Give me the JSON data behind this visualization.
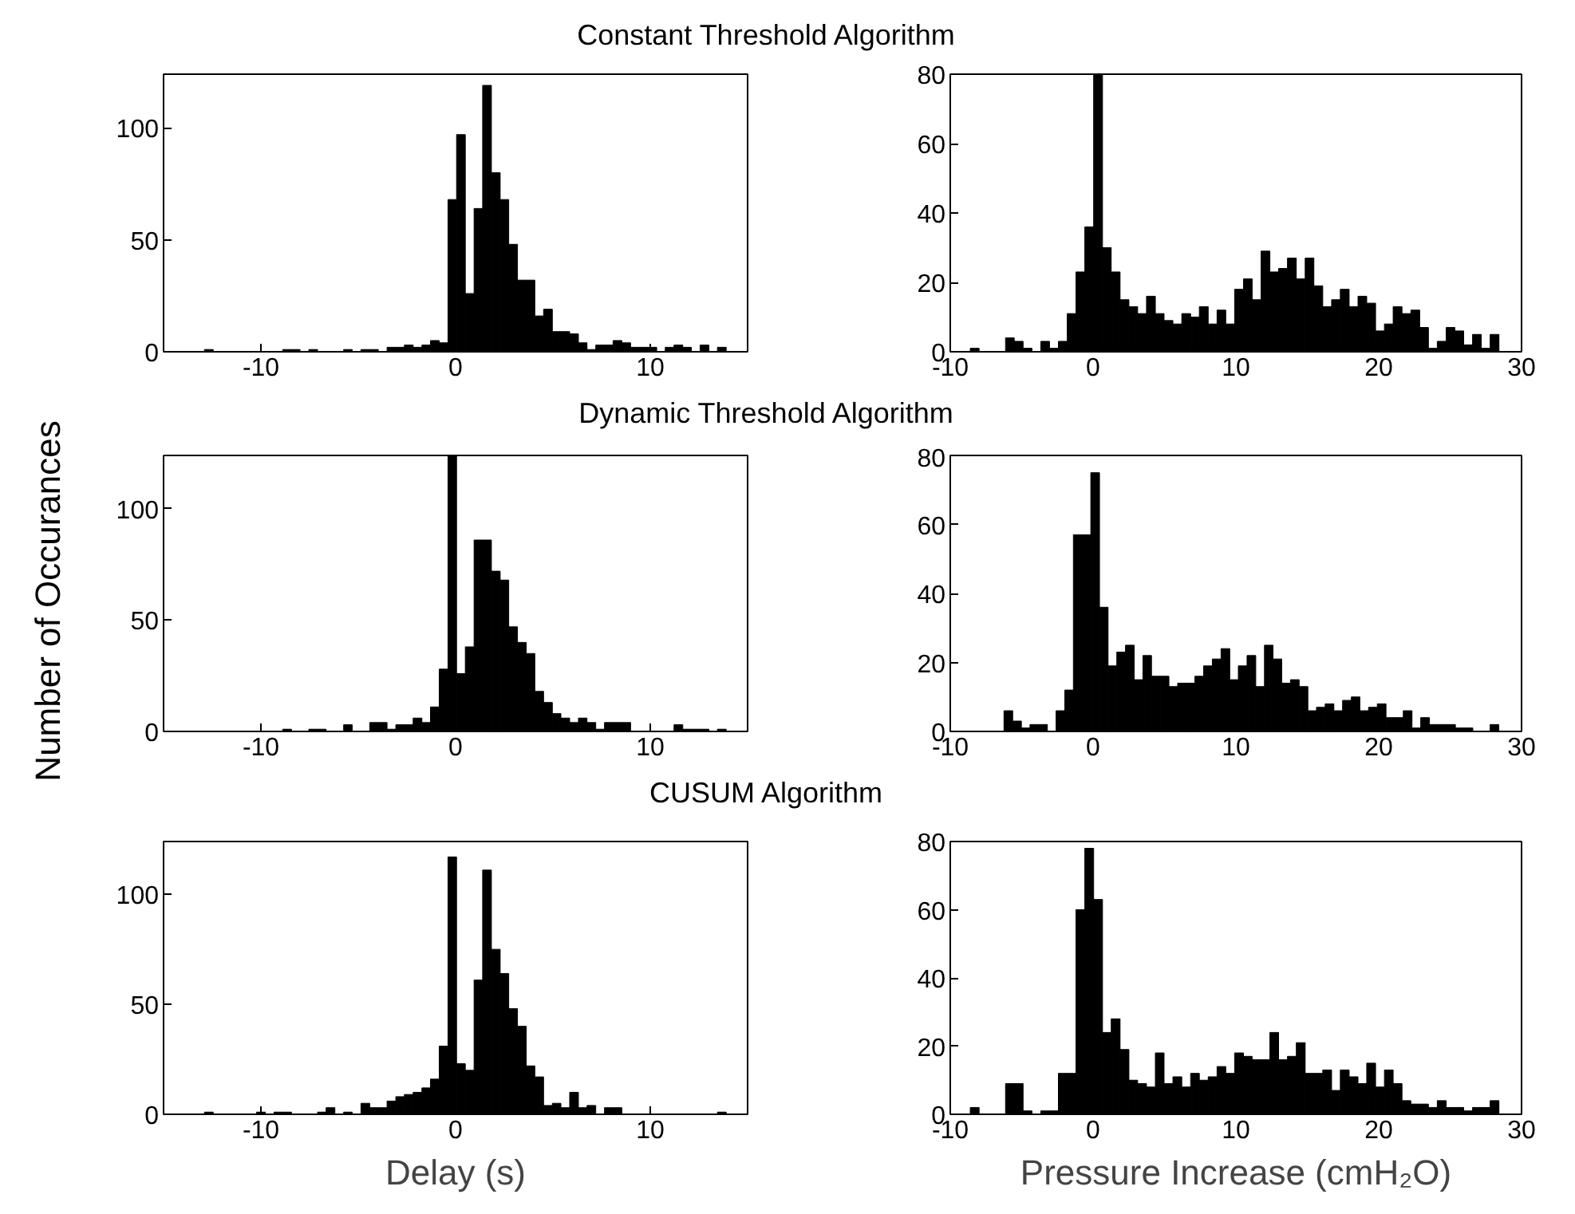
{
  "chart_data": [
    {
      "type": "histogram",
      "title": "Constant Threshold Algorithm",
      "color": "#000000",
      "xlim": [
        -15,
        15
      ],
      "ylim": [
        0,
        124
      ],
      "xticks": [
        -10,
        0,
        10
      ],
      "yticks": [
        0,
        50,
        100
      ],
      "bins": [
        -12.9,
        -12.45,
        -12.01,
        -11.56,
        -11.11,
        -10.67,
        -10.22,
        -9.77,
        -9.33,
        -8.88,
        -8.43,
        -7.99,
        -7.54,
        -7.09,
        -6.65,
        -6.2,
        -5.75,
        -5.31,
        -4.86,
        -4.41,
        -3.97,
        -3.52,
        -3.07,
        -2.63,
        -2.18,
        -1.73,
        -1.29,
        -0.84,
        -0.39,
        0.05,
        0.5,
        0.95,
        1.39,
        1.84,
        2.29,
        2.73,
        3.18,
        3.63,
        4.07,
        4.52,
        4.97,
        5.41,
        5.86,
        6.31,
        6.75,
        7.2,
        7.65,
        8.09,
        8.54,
        8.99,
        9.43,
        9.88,
        10.33,
        10.77,
        11.22,
        11.67,
        12.11,
        12.56,
        13.01,
        13.45,
        13.9
      ],
      "values": [
        1,
        0,
        0,
        0,
        0,
        0,
        0,
        0,
        0,
        1,
        1,
        0,
        1,
        0,
        0,
        0,
        1,
        0,
        1,
        1,
        0,
        2,
        2,
        3,
        2,
        3,
        5,
        4,
        68,
        97,
        26,
        64,
        119,
        80,
        68,
        48,
        32,
        32,
        16,
        19,
        9,
        9,
        8,
        4,
        1,
        3,
        3,
        5,
        4,
        2,
        2,
        2,
        0,
        2,
        3,
        2,
        0,
        3,
        0,
        2
      ]
    },
    {
      "type": "histogram",
      "color": "#000000",
      "xlim": [
        -10,
        30
      ],
      "ylim": [
        0,
        80
      ],
      "xticks": [
        -10,
        0,
        10,
        20,
        30
      ],
      "yticks": [
        0,
        20,
        40,
        60,
        80
      ],
      "bins": [
        -8.6,
        -7.98,
        -7.37,
        -6.75,
        -6.13,
        -5.52,
        -4.9,
        -4.28,
        -3.66,
        -3.05,
        -2.43,
        -1.81,
        -1.2,
        -0.58,
        0.04,
        0.66,
        1.27,
        1.89,
        2.51,
        3.12,
        3.74,
        4.36,
        4.97,
        5.59,
        6.21,
        6.83,
        7.44,
        8.06,
        8.68,
        9.29,
        9.91,
        10.53,
        11.14,
        11.76,
        12.38,
        12.99,
        13.61,
        14.23,
        14.85,
        15.46,
        16.08,
        16.7,
        17.31,
        17.93,
        18.55,
        19.16,
        19.78,
        20.4,
        21.01,
        21.63,
        22.25,
        22.87,
        23.48,
        24.1,
        24.72,
        25.33,
        25.95,
        26.57,
        27.18,
        27.8,
        28.42
      ],
      "values": [
        1,
        0,
        0,
        0,
        4,
        3,
        1,
        0,
        3,
        1,
        3,
        11,
        23,
        36,
        80,
        30,
        23,
        15,
        13,
        11,
        16,
        11,
        9,
        8,
        11,
        10,
        13,
        8,
        12,
        8,
        18,
        21,
        15,
        29,
        23,
        24,
        27,
        21,
        27,
        19,
        13,
        15,
        18,
        13,
        16,
        14,
        6,
        8,
        13,
        11,
        12,
        7,
        1,
        3,
        7,
        6,
        2,
        5,
        1,
        5
      ]
    },
    {
      "type": "histogram",
      "title": "Dynamic Threshold Algorithm",
      "ylabel": "Number of Occurances",
      "color": "#000000",
      "xlim": [
        -15,
        15
      ],
      "ylim": [
        0,
        124
      ],
      "xticks": [
        -10,
        0,
        10
      ],
      "yticks": [
        0,
        50,
        100
      ],
      "bins": [
        -12.9,
        -12.45,
        -12.01,
        -11.56,
        -11.11,
        -10.67,
        -10.22,
        -9.77,
        -9.33,
        -8.88,
        -8.43,
        -7.99,
        -7.54,
        -7.09,
        -6.65,
        -6.2,
        -5.75,
        -5.31,
        -4.86,
        -4.41,
        -3.97,
        -3.52,
        -3.07,
        -2.63,
        -2.18,
        -1.73,
        -1.29,
        -0.84,
        -0.39,
        0.05,
        0.5,
        0.95,
        1.39,
        1.84,
        2.29,
        2.73,
        3.18,
        3.63,
        4.07,
        4.52,
        4.97,
        5.41,
        5.86,
        6.31,
        6.75,
        7.2,
        7.65,
        8.09,
        8.54,
        8.99,
        9.43,
        9.88,
        10.33,
        10.77,
        11.22,
        11.67,
        12.11,
        12.56,
        13.01,
        13.45,
        13.9
      ],
      "values": [
        0,
        0,
        0,
        0,
        0,
        0,
        0,
        0,
        0,
        1,
        0,
        0,
        1,
        1,
        0,
        0,
        3,
        0,
        0,
        4,
        4,
        1,
        3,
        3,
        6,
        4,
        11,
        28,
        124,
        26,
        38,
        86,
        86,
        72,
        68,
        47,
        40,
        35,
        18,
        13,
        8,
        6,
        4,
        6,
        4,
        1,
        4,
        4,
        4,
        0,
        0,
        0,
        0,
        0,
        3,
        1,
        1,
        1,
        0,
        1
      ]
    },
    {
      "type": "histogram",
      "color": "#000000",
      "xlim": [
        -10,
        30
      ],
      "ylim": [
        0,
        80
      ],
      "xticks": [
        -10,
        0,
        10,
        20,
        30
      ],
      "yticks": [
        0,
        20,
        40,
        60,
        80
      ],
      "bins": [
        -6.24,
        -5.63,
        -5.02,
        -4.42,
        -3.81,
        -3.2,
        -2.59,
        -1.98,
        -1.38,
        -0.77,
        -0.16,
        0.45,
        1.05,
        1.66,
        2.27,
        2.88,
        3.49,
        4.09,
        4.7,
        5.31,
        5.92,
        6.53,
        7.13,
        7.74,
        8.35,
        8.96,
        9.57,
        10.17,
        10.78,
        11.39,
        12.0,
        12.6,
        13.21,
        13.82,
        14.43,
        15.04,
        15.64,
        16.25,
        16.86,
        17.47,
        18.08,
        18.68,
        19.29,
        19.9,
        20.51,
        21.12,
        21.72,
        22.33,
        22.94,
        23.55,
        24.16,
        24.76,
        25.37,
        25.98,
        26.59,
        27.19,
        27.8,
        28.41
      ],
      "values": [
        6,
        3,
        1,
        2,
        2,
        0,
        6,
        12,
        57,
        57,
        75,
        36,
        19,
        23,
        25,
        15,
        22,
        16,
        16,
        13,
        14,
        14,
        16,
        19,
        21,
        24,
        15,
        19,
        22,
        13,
        25,
        21,
        14,
        15,
        13,
        6,
        7,
        8,
        6,
        9,
        10,
        6,
        7,
        8,
        4,
        4,
        6,
        1,
        4,
        2,
        2,
        2,
        1,
        1,
        0,
        0,
        2
      ]
    },
    {
      "type": "histogram",
      "title": "CUSUM Algorithm",
      "xlabel": "Delay (s)",
      "color": "#000000",
      "xlim": [
        -15,
        15
      ],
      "ylim": [
        0,
        124
      ],
      "xticks": [
        -10,
        0,
        10
      ],
      "yticks": [
        0,
        50,
        100
      ],
      "bins": [
        -12.9,
        -12.45,
        -12.01,
        -11.56,
        -11.11,
        -10.67,
        -10.22,
        -9.77,
        -9.33,
        -8.88,
        -8.43,
        -7.99,
        -7.54,
        -7.09,
        -6.65,
        -6.2,
        -5.75,
        -5.31,
        -4.86,
        -4.41,
        -3.97,
        -3.52,
        -3.07,
        -2.63,
        -2.18,
        -1.73,
        -1.29,
        -0.84,
        -0.39,
        0.05,
        0.5,
        0.95,
        1.39,
        1.84,
        2.29,
        2.73,
        3.18,
        3.63,
        4.07,
        4.52,
        4.97,
        5.41,
        5.86,
        6.31,
        6.75,
        7.2,
        7.65,
        8.09,
        8.54,
        8.99,
        9.43,
        9.88,
        10.33,
        10.77,
        11.22,
        11.67,
        12.11,
        12.56,
        13.01,
        13.45,
        13.9
      ],
      "values": [
        1,
        0,
        0,
        0,
        0,
        0,
        1,
        0,
        1,
        1,
        0,
        0,
        0,
        1,
        3,
        0,
        1,
        0,
        5,
        3,
        3,
        6,
        8,
        9,
        10,
        12,
        16,
        31,
        117,
        23,
        20,
        61,
        111,
        75,
        64,
        48,
        40,
        22,
        17,
        4,
        5,
        3,
        10,
        3,
        4,
        0,
        3,
        3,
        0,
        0,
        0,
        0,
        0,
        0,
        0,
        0,
        0,
        0,
        0,
        1
      ]
    },
    {
      "type": "histogram",
      "xlabel": "Pressure Increase (cmH₂O)",
      "color": "#000000",
      "xlim": [
        -10,
        30
      ],
      "ylim": [
        0,
        80
      ],
      "xticks": [
        -10,
        0,
        10,
        20,
        30
      ],
      "yticks": [
        0,
        20,
        40,
        60,
        80
      ],
      "bins": [
        -8.6,
        -7.98,
        -7.37,
        -6.75,
        -6.13,
        -5.52,
        -4.9,
        -4.28,
        -3.66,
        -3.05,
        -2.43,
        -1.81,
        -1.2,
        -0.58,
        0.04,
        0.66,
        1.27,
        1.89,
        2.51,
        3.12,
        3.74,
        4.36,
        4.97,
        5.59,
        6.21,
        6.83,
        7.44,
        8.06,
        8.68,
        9.29,
        9.91,
        10.53,
        11.14,
        11.76,
        12.38,
        12.99,
        13.61,
        14.23,
        14.85,
        15.46,
        16.08,
        16.7,
        17.31,
        17.93,
        18.55,
        19.16,
        19.78,
        20.4,
        21.01,
        21.63,
        22.25,
        22.87,
        23.48,
        24.1,
        24.72,
        25.33,
        25.95,
        26.57,
        27.18,
        27.8,
        28.42
      ],
      "values": [
        2,
        0,
        0,
        0,
        9,
        9,
        1,
        0,
        1,
        1,
        12,
        12,
        60,
        78,
        63,
        24,
        28,
        19,
        10,
        9,
        8,
        18,
        9,
        11,
        8,
        12,
        10,
        11,
        14,
        12,
        18,
        17,
        16,
        16,
        24,
        16,
        17,
        21,
        12,
        12,
        13,
        7,
        13,
        11,
        9,
        15,
        8,
        13,
        9,
        4,
        3,
        3,
        2,
        4,
        2,
        2,
        1,
        2,
        2,
        4
      ]
    }
  ]
}
